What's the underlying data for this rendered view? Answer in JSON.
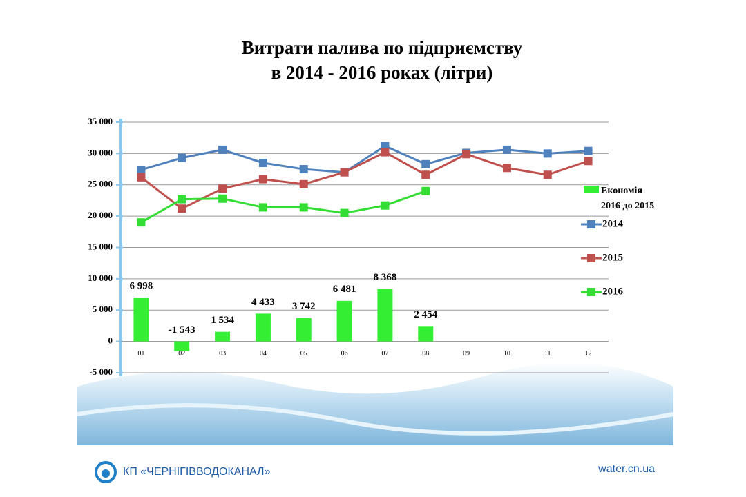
{
  "chart_data": {
    "type": "bar-line",
    "title": "Витрати палива по підприємству",
    "subtitle": "в 2014 - 2016 роках (літри)",
    "categories": [
      "01",
      "02",
      "03",
      "04",
      "05",
      "06",
      "07",
      "08",
      "09",
      "10",
      "11",
      "12"
    ],
    "ylim": [
      -5000,
      35000
    ],
    "yticks": [
      {
        "value": -5000,
        "label": "-5 000"
      },
      0,
      {
        "value": 5000,
        "label": "5 000"
      },
      {
        "value": 10000,
        "label": "10 000"
      },
      {
        "value": 15000,
        "label": "15 000"
      },
      {
        "value": 20000,
        "label": "20 000"
      },
      {
        "value": 25000,
        "label": "25 000"
      },
      {
        "value": 30000,
        "label": "30 000"
      },
      {
        "value": 35000,
        "label": "35 000"
      }
    ],
    "grid": true,
    "legend": "right",
    "series": [
      {
        "name": "Економія 2016 до 2015",
        "type": "bar",
        "color": "#33ee33",
        "values": [
          6998,
          -1543,
          1534,
          4433,
          3742,
          6481,
          8368,
          2454,
          null,
          null,
          null,
          null
        ],
        "value_labels": [
          "6 998",
          "-1 543",
          "1 534",
          "4 433",
          "3 742",
          "6 481",
          "8 368",
          "2 454",
          null,
          null,
          null,
          null
        ]
      },
      {
        "name": "2014",
        "type": "line",
        "color": "#4f81bd",
        "values": [
          27400,
          29300,
          30600,
          28500,
          27500,
          27000,
          31200,
          28300,
          30100,
          30600,
          30000,
          30400
        ]
      },
      {
        "name": "2015",
        "type": "line",
        "color": "#c0504d",
        "values": [
          26200,
          21200,
          24400,
          25900,
          25100,
          27000,
          30200,
          26600,
          29900,
          27700,
          26600,
          28800
        ]
      },
      {
        "name": "2016",
        "type": "line",
        "color": "#33dd33",
        "values": [
          19000,
          22700,
          22800,
          21400,
          21400,
          20500,
          21700,
          24000,
          null,
          null,
          null,
          null
        ]
      }
    ]
  },
  "footer": {
    "organization": "КП «ЧЕРНІГІВВОДОКАНАЛ»",
    "website": "water.cn.ua"
  }
}
